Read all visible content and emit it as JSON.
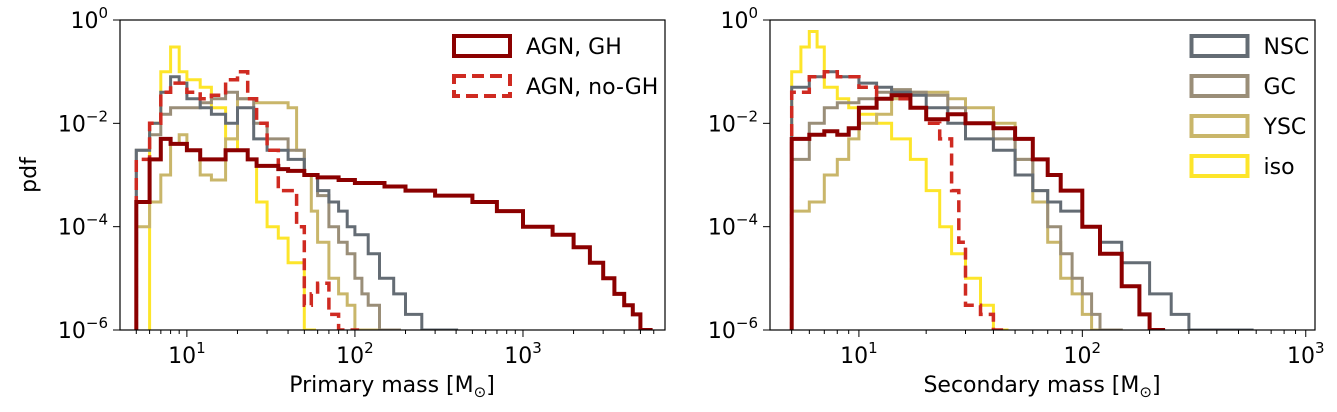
{
  "colors": {
    "agn_gh": "#8b0000",
    "agn_nogh": "#cf2a21",
    "nsc": "#646c74",
    "gc": "#9a8e78",
    "ysc": "#c9b66a",
    "iso": "#fde52a"
  },
  "chart_data": [
    {
      "type": "line",
      "subtype": "step-histogram",
      "xscale": "log",
      "yscale": "log",
      "xlim": [
        4,
        7000
      ],
      "ylim": [
        1e-06,
        1
      ],
      "xlabel_main": "Primary mass [M",
      "xlabel_sub": "⊙",
      "xlabel_end": "]",
      "ylabel": "pdf",
      "xticks": [
        {
          "v": 10,
          "base": "10",
          "exp": "1"
        },
        {
          "v": 100,
          "base": "10",
          "exp": "2"
        },
        {
          "v": 1000,
          "base": "10",
          "exp": "3"
        }
      ],
      "yticks": [
        {
          "v": 1,
          "base": "10",
          "exp": "0"
        },
        {
          "v": 0.01,
          "base": "10",
          "exp": "−2"
        },
        {
          "v": 0.0001,
          "base": "10",
          "exp": "−4"
        },
        {
          "v": 1e-06,
          "base": "10",
          "exp": "−6"
        }
      ],
      "legend": {
        "position": "upper right",
        "entries": [
          {
            "name": "AGN, GH",
            "color_key": "agn_gh",
            "dash": false
          },
          {
            "name": "AGN, no-GH",
            "color_key": "agn_nogh",
            "dash": true
          }
        ]
      },
      "series": [
        {
          "id": "iso",
          "color_key": "iso",
          "dash": false,
          "width": 3,
          "x": [
            6,
            7,
            8,
            9,
            10,
            12,
            14,
            17,
            20,
            23,
            26,
            30,
            35,
            40,
            50
          ],
          "y": [
            0.01,
            0.1,
            0.3,
            0.1,
            0.07,
            0.05,
            0.02,
            0.005,
            0.003,
            0.002,
            0.0003,
            0.0001,
            6e-05,
            2e-05,
            1e-06
          ]
        },
        {
          "id": "ysc",
          "color_key": "ysc",
          "dash": false,
          "width": 3,
          "x": [
            5,
            6,
            7,
            8,
            9,
            10,
            12,
            14,
            17,
            20,
            23,
            26,
            30,
            35,
            40,
            45,
            50,
            55,
            60,
            70,
            80,
            90,
            100,
            110,
            120
          ],
          "y": [
            0.0001,
            0.0003,
            0.001,
            0.004,
            0.006,
            0.003,
            0.001,
            0.0008,
            0.005,
            0.03,
            0.03,
            0.025,
            0.025,
            0.025,
            0.02,
            0.003,
            0.001,
            0.0002,
            5e-05,
            1e-05,
            5e-06,
            3e-06,
            1e-06,
            1e-06,
            1e-06
          ]
        },
        {
          "id": "gc",
          "color_key": "gc",
          "dash": false,
          "width": 3,
          "x": [
            5,
            6,
            7,
            8,
            9,
            10,
            12,
            14,
            17,
            20,
            25,
            30,
            40,
            50,
            60,
            70,
            80,
            90,
            100,
            110,
            120,
            140,
            160
          ],
          "y": [
            0.003,
            0.006,
            0.015,
            0.02,
            0.02,
            0.02,
            0.025,
            0.03,
            0.04,
            0.03,
            0.01,
            0.005,
            0.003,
            0.001,
            0.0004,
            0.0001,
            5e-05,
            3e-05,
            1e-05,
            5e-06,
            3e-06,
            1e-06,
            1e-06
          ]
        },
        {
          "id": "nsc",
          "color_key": "nsc",
          "dash": false,
          "width": 3,
          "x": [
            5,
            6,
            7,
            8,
            9,
            10,
            12,
            14,
            17,
            20,
            25,
            30,
            40,
            50,
            60,
            70,
            80,
            90,
            100,
            120,
            140,
            170,
            200,
            250,
            300,
            350
          ],
          "y": [
            0.003,
            0.01,
            0.04,
            0.08,
            0.06,
            0.03,
            0.02,
            0.015,
            0.01,
            0.02,
            0.005,
            0.003,
            0.002,
            0.001,
            0.0005,
            0.0003,
            0.0002,
            0.0001,
            7e-05,
            3e-05,
            1e-05,
            5e-06,
            2e-06,
            1e-06,
            1e-06,
            1e-06
          ]
        },
        {
          "id": "agn_nogh",
          "color_key": "agn_nogh",
          "dash": true,
          "width": 3.5,
          "x": [
            5,
            6,
            7,
            8,
            10,
            12,
            14,
            17,
            20,
            23,
            26,
            30,
            35,
            40,
            45,
            50,
            55,
            60,
            70,
            80,
            90
          ],
          "y": [
            0.002,
            0.01,
            0.04,
            0.06,
            0.04,
            0.03,
            0.035,
            0.07,
            0.1,
            0.03,
            0.01,
            0.003,
            0.0005,
            0.0005,
            0.0001,
            3e-06,
            5e-06,
            8e-06,
            2e-06,
            1e-06,
            1e-06
          ]
        },
        {
          "id": "agn_gh",
          "color_key": "agn_gh",
          "dash": false,
          "width": 4,
          "x": [
            5,
            6,
            7,
            8,
            10,
            12,
            14,
            17,
            20,
            23,
            26,
            30,
            35,
            40,
            50,
            60,
            70,
            80,
            100,
            150,
            200,
            300,
            500,
            700,
            1000,
            1500,
            2000,
            2500,
            3000,
            3500,
            4000,
            4500,
            5000
          ],
          "y": [
            0.0003,
            0.002,
            0.005,
            0.004,
            0.003,
            0.002,
            0.002,
            0.003,
            0.003,
            0.002,
            0.0015,
            0.0015,
            0.0013,
            0.0012,
            0.001,
            0.0009,
            0.0009,
            0.0008,
            0.0007,
            0.0006,
            0.0005,
            0.0004,
            0.0003,
            0.0002,
            0.0001,
            7e-05,
            4e-05,
            2e-05,
            1e-05,
            5e-06,
            3e-06,
            2e-06,
            1e-06
          ]
        }
      ]
    },
    {
      "type": "line",
      "subtype": "step-histogram",
      "xscale": "log",
      "yscale": "log",
      "xlim": [
        4,
        1100
      ],
      "ylim": [
        1e-06,
        1
      ],
      "xlabel_main": "Secondary mass [M",
      "xlabel_sub": "⊙",
      "xlabel_end": "]",
      "ylabel": "",
      "xticks": [
        {
          "v": 10,
          "base": "10",
          "exp": "1"
        },
        {
          "v": 100,
          "base": "10",
          "exp": "2"
        },
        {
          "v": 1000,
          "base": "10",
          "exp": "3"
        }
      ],
      "yticks": [
        {
          "v": 1,
          "base": "10",
          "exp": "0"
        },
        {
          "v": 0.01,
          "base": "10",
          "exp": "−2"
        },
        {
          "v": 0.0001,
          "base": "10",
          "exp": "−4"
        },
        {
          "v": 1e-06,
          "base": "10",
          "exp": "−6"
        }
      ],
      "legend": {
        "position": "upper right",
        "entries": [
          {
            "name": "NSC",
            "color_key": "nsc",
            "dash": false
          },
          {
            "name": "GC",
            "color_key": "gc",
            "dash": false
          },
          {
            "name": "YSC",
            "color_key": "ysc",
            "dash": false
          },
          {
            "name": "iso",
            "color_key": "iso",
            "dash": false
          }
        ]
      },
      "series": [
        {
          "id": "iso",
          "color_key": "iso",
          "dash": false,
          "width": 3,
          "x": [
            5,
            5.5,
            6,
            6.5,
            7,
            8,
            9,
            10,
            12,
            14,
            17,
            20,
            23,
            26,
            30,
            35,
            40
          ],
          "y": [
            0.1,
            0.3,
            0.6,
            0.3,
            0.05,
            0.03,
            0.02,
            0.015,
            0.01,
            0.005,
            0.002,
            0.0005,
            0.0001,
            3e-05,
            1e-05,
            3e-06,
            1e-06
          ]
        },
        {
          "id": "ysc",
          "color_key": "ysc",
          "dash": false,
          "width": 3,
          "x": [
            5,
            6,
            7,
            8,
            9,
            10,
            12,
            14,
            17,
            20,
            25,
            30,
            40,
            50,
            60,
            70,
            80,
            90,
            100,
            110,
            120
          ],
          "y": [
            0.0002,
            0.0003,
            0.001,
            0.002,
            0.005,
            0.01,
            0.015,
            0.03,
            0.04,
            0.04,
            0.03,
            0.02,
            0.01,
            0.002,
            0.0003,
            5e-05,
            1e-05,
            5e-06,
            2e-06,
            1e-06,
            1e-06
          ]
        },
        {
          "id": "gc",
          "color_key": "gc",
          "dash": false,
          "width": 3,
          "x": [
            5,
            6,
            7,
            8,
            10,
            12,
            14,
            17,
            20,
            25,
            30,
            40,
            50,
            60,
            70,
            80,
            90,
            100,
            110,
            120,
            130
          ],
          "y": [
            0.002,
            0.01,
            0.02,
            0.025,
            0.03,
            0.04,
            0.045,
            0.04,
            0.035,
            0.02,
            0.01,
            0.005,
            0.002,
            0.0005,
            0.0001,
            3e-05,
            1e-05,
            5e-06,
            2e-06,
            1e-06,
            1e-06
          ]
        },
        {
          "id": "nsc",
          "color_key": "nsc",
          "dash": false,
          "width": 3,
          "x": [
            5,
            6,
            7,
            8,
            10,
            12,
            14,
            17,
            20,
            25,
            30,
            40,
            50,
            60,
            70,
            80,
            100,
            120,
            150,
            200,
            250,
            300,
            350,
            400,
            500
          ],
          "y": [
            0.05,
            0.08,
            0.1,
            0.08,
            0.06,
            0.05,
            0.04,
            0.035,
            0.02,
            0.01,
            0.005,
            0.003,
            0.001,
            0.0005,
            0.0003,
            0.0002,
            0.0001,
            5e-05,
            2e-05,
            5e-06,
            2e-06,
            1e-06,
            1e-06,
            1e-06,
            1e-06
          ]
        },
        {
          "id": "agn_nogh",
          "color_key": "agn_nogh",
          "dash": true,
          "width": 3.5,
          "x": [
            5,
            6,
            7,
            8,
            10,
            12,
            14,
            17,
            20,
            23,
            26,
            28,
            30,
            35,
            40
          ],
          "y": [
            0.04,
            0.08,
            0.1,
            0.08,
            0.05,
            0.03,
            0.03,
            0.02,
            0.01,
            0.005,
            0.0005,
            5e-05,
            3e-06,
            2e-06,
            1e-06
          ]
        },
        {
          "id": "agn_gh",
          "color_key": "agn_gh",
          "dash": false,
          "width": 4,
          "x": [
            5,
            6,
            7,
            8,
            9,
            10,
            12,
            14,
            17,
            20,
            25,
            30,
            40,
            50,
            60,
            70,
            80,
            100,
            120,
            150,
            180,
            200
          ],
          "y": [
            0.005,
            0.006,
            0.007,
            0.006,
            0.008,
            0.02,
            0.03,
            0.035,
            0.02,
            0.012,
            0.015,
            0.01,
            0.008,
            0.005,
            0.002,
            0.001,
            0.0005,
            0.0001,
            3e-05,
            7e-06,
            2e-06,
            1e-06
          ]
        }
      ]
    }
  ]
}
